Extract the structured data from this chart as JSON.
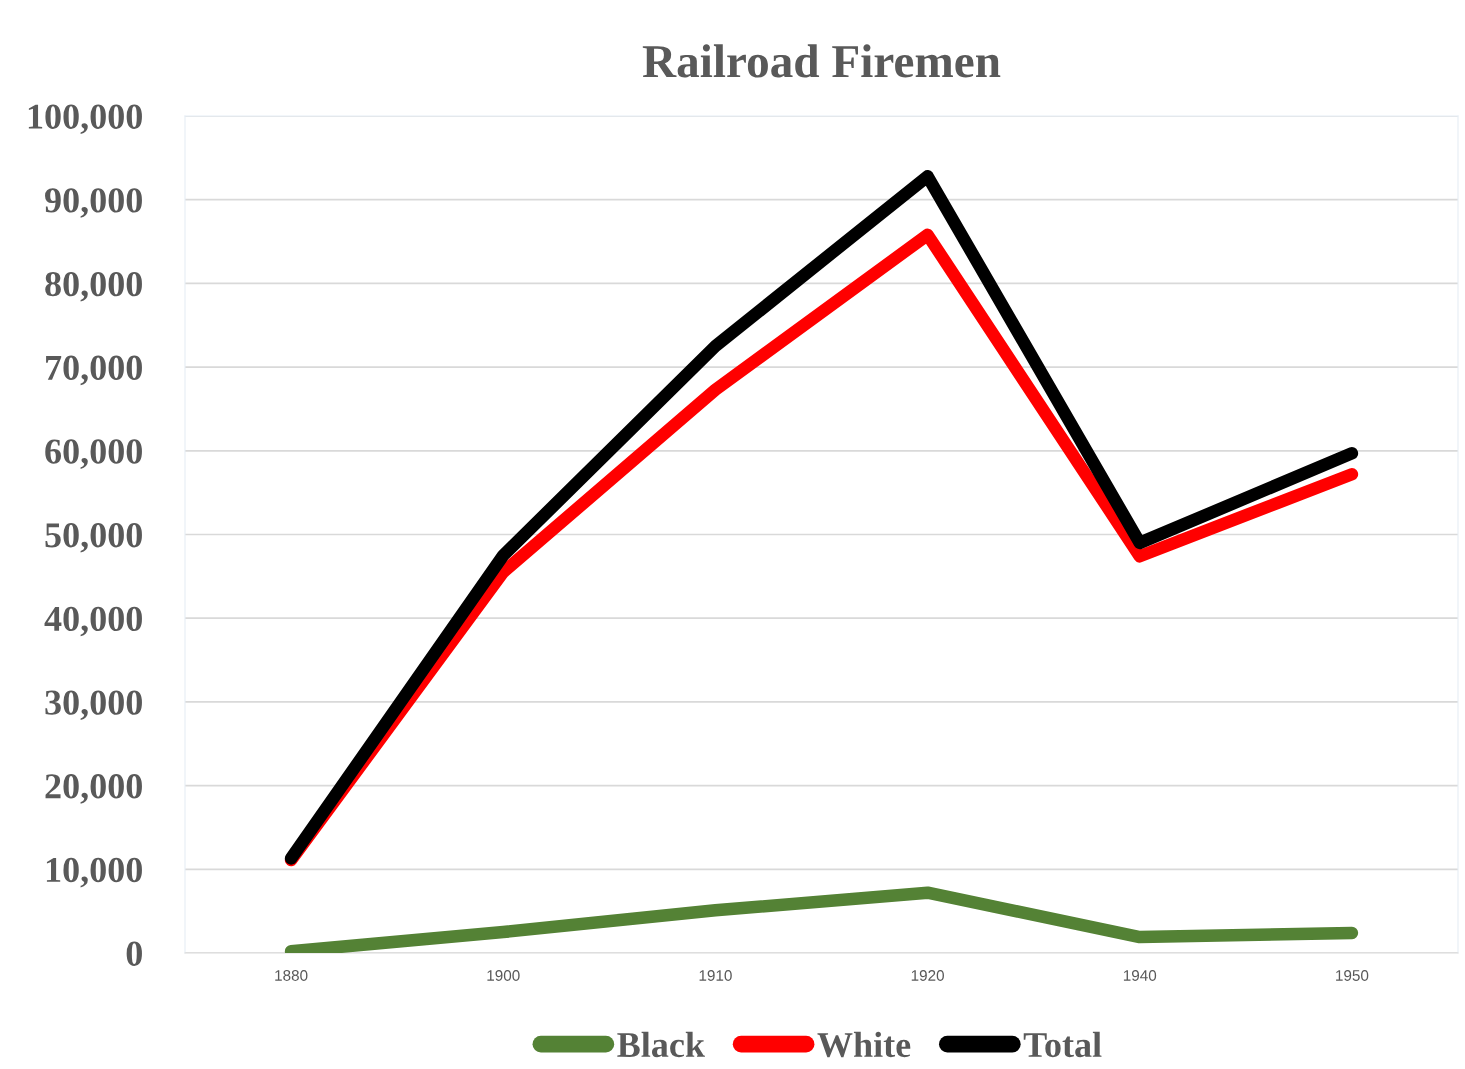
{
  "chart_data": {
    "type": "line",
    "title": "Railroad Firemen",
    "categories": [
      "1880",
      "1900",
      "1910",
      "1920",
      "1940",
      "1950"
    ],
    "series": [
      {
        "name": "Black",
        "color": "#548235",
        "values": [
          200,
          2500,
          5100,
          7200,
          1900,
          2400
        ]
      },
      {
        "name": "White",
        "color": "#ff0000",
        "values": [
          11100,
          45500,
          67300,
          85800,
          47400,
          57200
        ]
      },
      {
        "name": "Total",
        "color": "#000000",
        "values": [
          11300,
          47500,
          72500,
          92800,
          49000,
          59700
        ]
      }
    ],
    "ylim": [
      0,
      100000
    ],
    "yticks": [
      {
        "value": 0,
        "label": "0"
      },
      {
        "value": 10000,
        "label": "10,000"
      },
      {
        "value": 20000,
        "label": "20,000"
      },
      {
        "value": 30000,
        "label": "30,000"
      },
      {
        "value": 40000,
        "label": "40,000"
      },
      {
        "value": 50000,
        "label": "50,000"
      },
      {
        "value": 60000,
        "label": "60,000"
      },
      {
        "value": 70000,
        "label": "70,000"
      },
      {
        "value": 80000,
        "label": "80,000"
      },
      {
        "value": 90000,
        "label": "90,000"
      },
      {
        "value": 100000,
        "label": "100,000"
      }
    ],
    "grid": "y",
    "legend": "bottom",
    "line_style": "solid"
  }
}
